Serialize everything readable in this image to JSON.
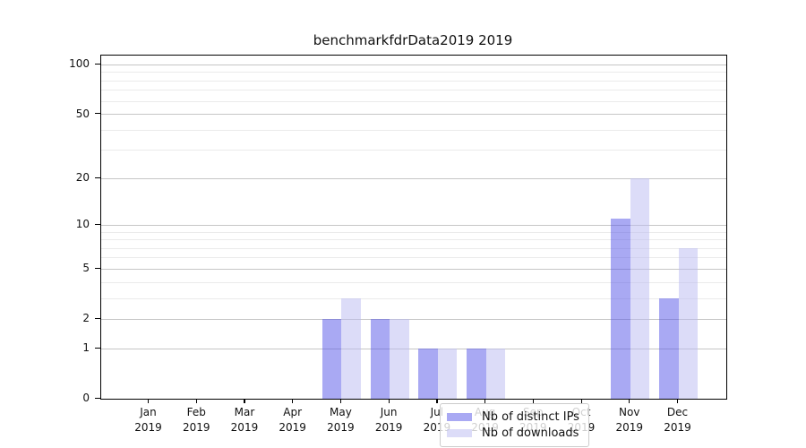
{
  "title": "benchmarkfdrData2019 2019",
  "chart_data": {
    "type": "bar",
    "categories": [
      "Jan",
      "Feb",
      "Mar",
      "Apr",
      "May",
      "Jun",
      "Jul",
      "Aug",
      "Sep",
      "Oct",
      "Nov",
      "Dec"
    ],
    "category_year": "2019",
    "series": [
      {
        "name": "Nb of distinct IPs",
        "color": "#a9a9f3",
        "bar_color": "rgba(83,83,231,0.5)",
        "values": [
          0,
          0,
          0,
          0,
          2,
          2,
          1,
          1,
          0,
          0,
          11,
          3
        ]
      },
      {
        "name": "Nb of downloads",
        "color": "#dcdcf8",
        "bar_color": "rgba(185,185,241,0.5)",
        "values": [
          0,
          0,
          0,
          0,
          3,
          2,
          1,
          1,
          0,
          0,
          20,
          7
        ]
      }
    ],
    "yscale": "log1p",
    "ylim": [
      0,
      114
    ],
    "y_major_ticks": [
      0,
      1,
      2,
      5,
      10,
      20,
      50,
      100
    ],
    "y_minor_ticks": [
      3,
      4,
      6,
      7,
      8,
      9,
      30,
      40,
      60,
      70,
      80,
      90
    ],
    "xlabel": "",
    "ylabel": "",
    "grid": true,
    "legend_position": "lower center",
    "axis_color": "#000000",
    "major_grid_color": "#c6c6c6",
    "minor_grid_color": "#ebebeb"
  }
}
